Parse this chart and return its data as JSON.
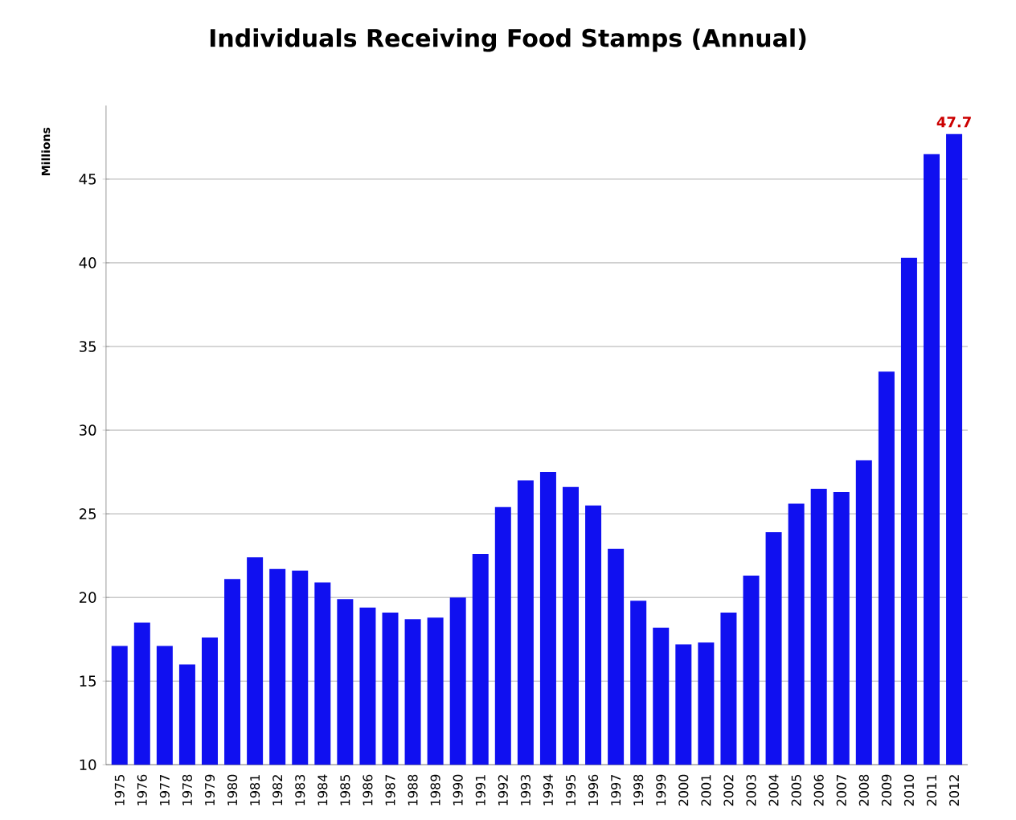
{
  "chart_data": {
    "type": "bar",
    "title": "Individuals Receiving Food Stamps (Annual)",
    "ylabel": "Millions",
    "categories": [
      "1975",
      "1976",
      "1977",
      "1978",
      "1979",
      "1980",
      "1981",
      "1982",
      "1983",
      "1984",
      "1985",
      "1986",
      "1987",
      "1988",
      "1989",
      "1990",
      "1991",
      "1992",
      "1993",
      "1994",
      "1995",
      "1996",
      "1997",
      "1998",
      "1999",
      "2000",
      "2001",
      "2002",
      "2003",
      "2004",
      "2005",
      "2006",
      "2007",
      "2008",
      "2009",
      "2010",
      "2011",
      "2012"
    ],
    "values": [
      17.1,
      18.5,
      17.1,
      16.0,
      17.6,
      21.1,
      22.4,
      21.7,
      21.6,
      20.9,
      19.9,
      19.4,
      19.1,
      18.7,
      18.8,
      20.0,
      22.6,
      25.4,
      27.0,
      27.5,
      26.6,
      25.5,
      22.9,
      19.8,
      18.2,
      17.2,
      17.3,
      19.1,
      21.3,
      23.9,
      25.6,
      26.5,
      26.3,
      28.2,
      33.5,
      40.3,
      46.5,
      47.7
    ],
    "value_labels": [
      null,
      null,
      null,
      null,
      null,
      null,
      null,
      null,
      null,
      null,
      null,
      null,
      null,
      null,
      null,
      null,
      null,
      null,
      null,
      null,
      null,
      null,
      null,
      null,
      null,
      null,
      null,
      null,
      null,
      null,
      null,
      null,
      null,
      null,
      null,
      null,
      null,
      "47.7"
    ],
    "color": "#1010f0",
    "ylim": [
      10,
      49.4
    ],
    "yticks": [
      10,
      15,
      20,
      25,
      30,
      35,
      40,
      45
    ],
    "grid": "y"
  }
}
